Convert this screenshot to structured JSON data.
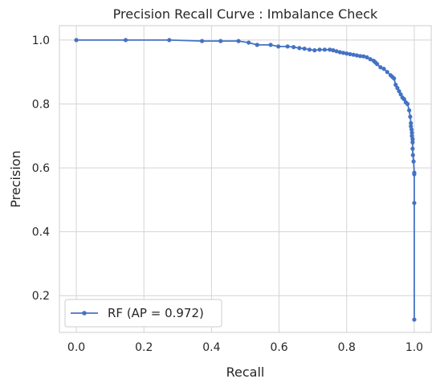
{
  "chart_data": {
    "type": "line",
    "title": "Precision Recall Curve : Imbalance Check",
    "xlabel": "Recall",
    "ylabel": "Precision",
    "xlim": [
      -0.05,
      1.05
    ],
    "ylim": [
      0.085,
      1.045
    ],
    "grid": true,
    "legend_position": "lower-left",
    "x_ticks": [
      {
        "value": 0.0,
        "label": "0.0"
      },
      {
        "value": 0.2,
        "label": "0.2"
      },
      {
        "value": 0.4,
        "label": "0.4"
      },
      {
        "value": 0.6,
        "label": "0.6"
      },
      {
        "value": 0.8,
        "label": "0.8"
      },
      {
        "value": 1.0,
        "label": "1.0"
      }
    ],
    "y_ticks": [
      {
        "value": 0.2,
        "label": "0.2"
      },
      {
        "value": 0.4,
        "label": "0.4"
      },
      {
        "value": 0.6,
        "label": "0.6"
      },
      {
        "value": 0.8,
        "label": "0.8"
      },
      {
        "value": 1.0,
        "label": "1.0"
      }
    ],
    "series": [
      {
        "name": "RF (AP = 0.972)",
        "color": "#4472c4",
        "marker": "circle",
        "x": [
          0.0,
          0.146,
          0.275,
          0.372,
          0.427,
          0.48,
          0.51,
          0.535,
          0.575,
          0.598,
          0.625,
          0.643,
          0.66,
          0.675,
          0.69,
          0.705,
          0.72,
          0.735,
          0.75,
          0.76,
          0.77,
          0.78,
          0.79,
          0.8,
          0.81,
          0.82,
          0.83,
          0.84,
          0.85,
          0.86,
          0.87,
          0.88,
          0.885,
          0.89,
          0.9,
          0.91,
          0.92,
          0.93,
          0.935,
          0.94,
          0.945,
          0.95,
          0.955,
          0.96,
          0.965,
          0.97,
          0.975,
          0.98,
          0.985,
          0.988,
          0.99,
          0.99,
          0.992,
          0.993,
          0.993,
          0.995,
          0.995,
          0.995,
          0.996,
          0.998,
          1.0,
          1.0,
          1.0,
          1.0
        ],
        "y": [
          1.0,
          1.0,
          1.0,
          0.997,
          0.997,
          0.997,
          0.992,
          0.985,
          0.985,
          0.98,
          0.98,
          0.978,
          0.975,
          0.973,
          0.97,
          0.968,
          0.97,
          0.97,
          0.97,
          0.968,
          0.965,
          0.962,
          0.96,
          0.958,
          0.956,
          0.954,
          0.952,
          0.95,
          0.949,
          0.946,
          0.94,
          0.935,
          0.93,
          0.925,
          0.915,
          0.91,
          0.9,
          0.89,
          0.885,
          0.88,
          0.86,
          0.85,
          0.84,
          0.83,
          0.82,
          0.815,
          0.805,
          0.8,
          0.78,
          0.76,
          0.74,
          0.73,
          0.72,
          0.71,
          0.7,
          0.69,
          0.68,
          0.66,
          0.64,
          0.62,
          0.585,
          0.58,
          0.49,
          0.125
        ]
      }
    ]
  }
}
